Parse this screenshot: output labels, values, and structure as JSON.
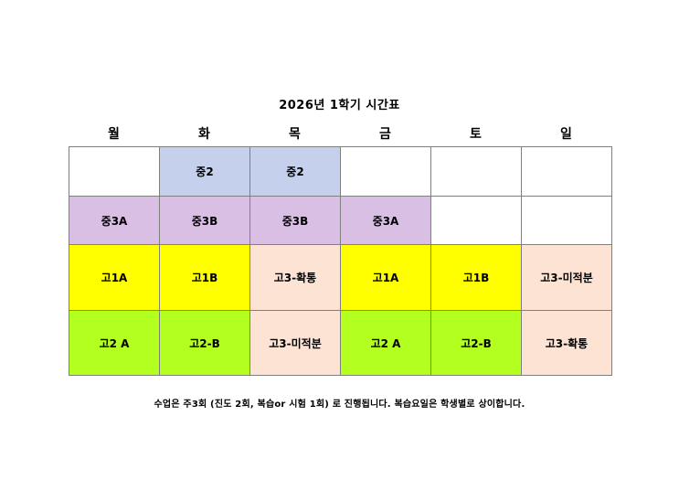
{
  "title": "2026년 1학기 시간표",
  "days": [
    "월",
    "화",
    "목",
    "금",
    "토",
    "일"
  ],
  "rows": [
    [
      "",
      "중2",
      "중2",
      "",
      "",
      ""
    ],
    [
      "중3A",
      "중3B",
      "중3B",
      "중3A",
      "",
      ""
    ],
    [
      "고1A",
      "고1B",
      "고3-확통",
      "고1A",
      "고1B",
      "고3-미적분"
    ],
    [
      "고2 A",
      "고2-B",
      "고3-미적분",
      "고2 A",
      "고2-B",
      "고3-확통"
    ]
  ],
  "colors": {
    "middle2": "#c5d0ec",
    "middle3": "#d9bfe4",
    "high1": "#ffff00",
    "high2": "#b3ff1f",
    "high3": "#fde3d4",
    "empty": "#ffffff"
  },
  "note": "수업은 주3회 (진도 2회, 복습or 시험 1회) 로 진행됩니다. 복습요일은 학생별로 상이합니다."
}
